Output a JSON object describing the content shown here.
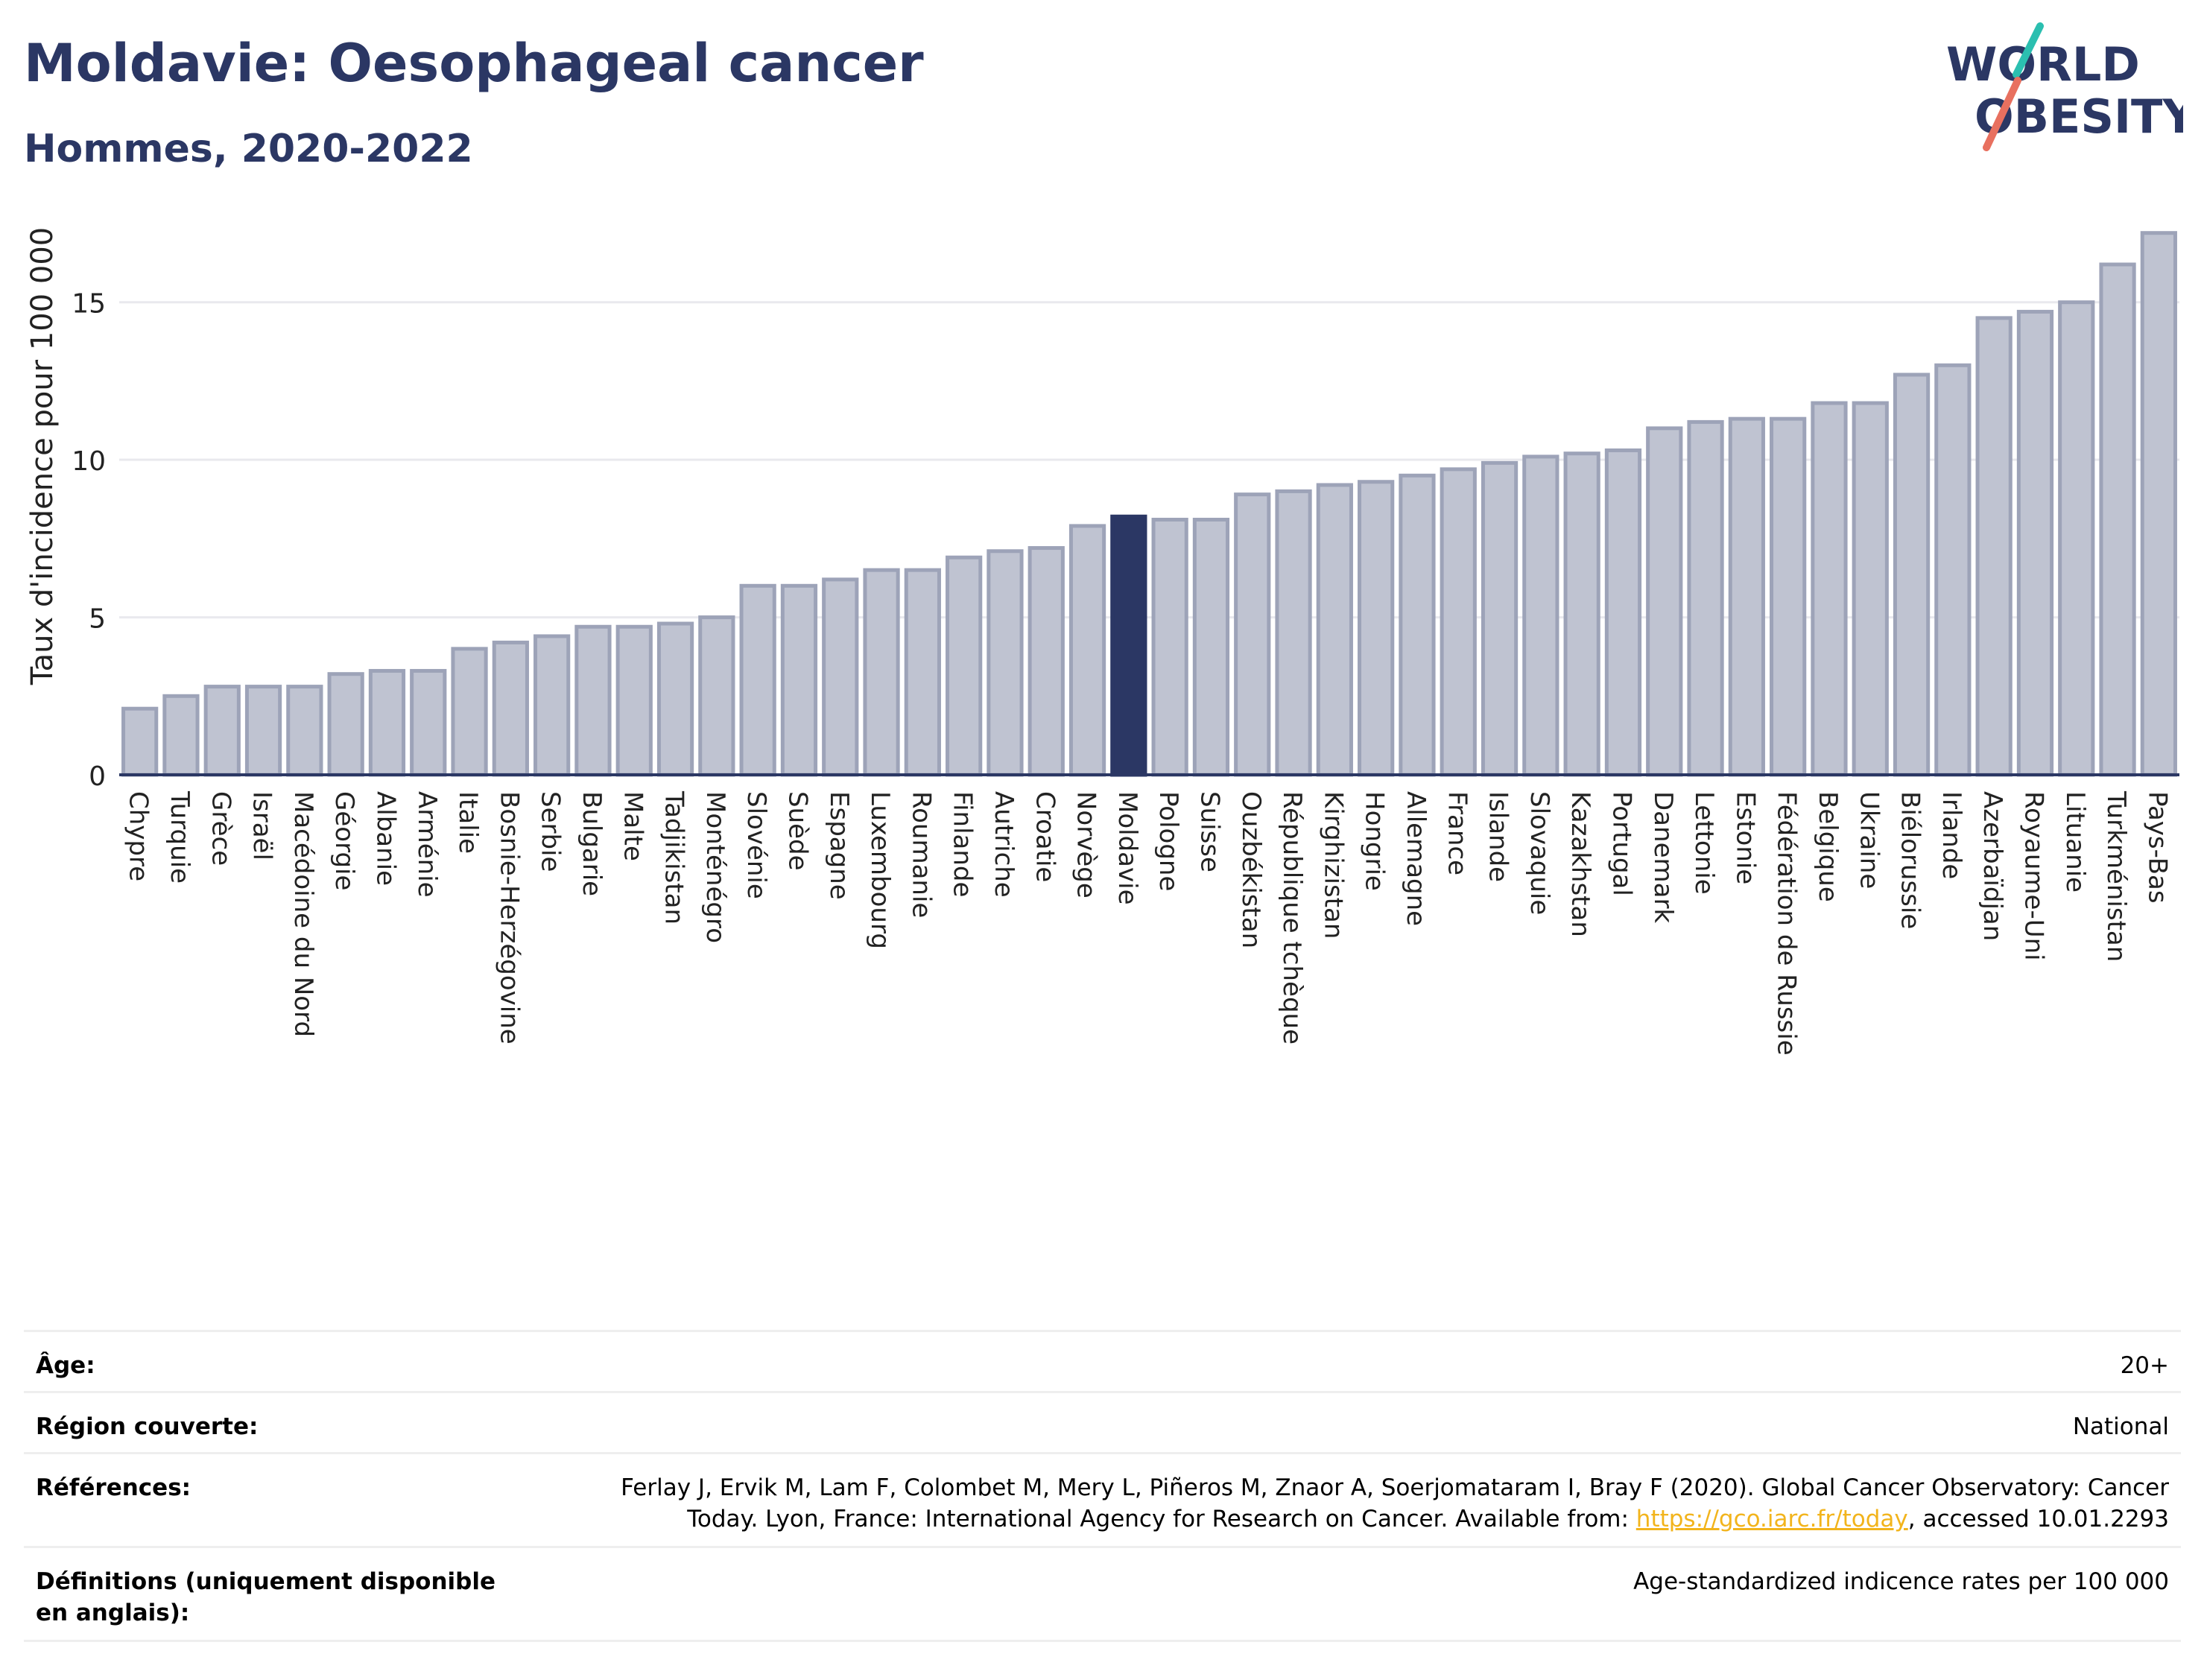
{
  "header": {
    "title": "Moldavie: Oesophageal cancer",
    "subtitle": "Hommes, 2020-2022"
  },
  "logo": {
    "line1": "WORLD",
    "line2": "OBESITY",
    "accent_colors": [
      "#2bbfb0",
      "#e8705f"
    ]
  },
  "colors": {
    "bar": "#bfc3d1",
    "bar_stroke": "#9da3b8",
    "highlight": "#2b3764",
    "axis": "#2b3764",
    "grid": "#e9e9ee"
  },
  "chart_data": {
    "type": "bar",
    "ylabel": "Taux d'incidence pour 100 000",
    "ylim": [
      0,
      17.5
    ],
    "yticks": [
      0,
      5,
      10,
      15
    ],
    "grid": true,
    "highlight": "Moldavie",
    "categories": [
      "Chypre",
      "Turquie",
      "Grèce",
      "Israël",
      "Macédoine du Nord",
      "Géorgie",
      "Albanie",
      "Arménie",
      "Italie",
      "Bosnie-Herzégovine",
      "Serbie",
      "Bulgarie",
      "Malte",
      "Tadjikistan",
      "Monténégro",
      "Slovénie",
      "Suède",
      "Espagne",
      "Luxembourg",
      "Roumanie",
      "Finlande",
      "Autriche",
      "Croatie",
      "Norvège",
      "Moldavie",
      "Pologne",
      "Suisse",
      "Ouzbékistan",
      "République tchèque",
      "Kirghizistan",
      "Hongrie",
      "Allemagne",
      "France",
      "Islande",
      "Slovaquie",
      "Kazakhstan",
      "Portugal",
      "Danemark",
      "Lettonie",
      "Estonie",
      "Fédération de Russie",
      "Belgique",
      "Ukraine",
      "Biélorussie",
      "Irlande",
      "Azerbaïdjan",
      "Royaume-Uni",
      "Lituanie",
      "Turkménistan",
      "Pays-Bas"
    ],
    "values": [
      2.1,
      2.5,
      2.8,
      2.8,
      2.8,
      3.2,
      3.3,
      3.3,
      4.0,
      4.2,
      4.4,
      4.7,
      4.7,
      4.8,
      5.0,
      6.0,
      6.0,
      6.2,
      6.5,
      6.5,
      6.9,
      7.1,
      7.2,
      7.9,
      8.2,
      8.1,
      8.1,
      8.9,
      9.0,
      9.2,
      9.3,
      9.5,
      9.7,
      9.9,
      10.1,
      10.2,
      10.3,
      11.0,
      11.2,
      11.3,
      11.3,
      11.8,
      11.8,
      12.7,
      13.0,
      14.5,
      14.7,
      15.0,
      16.2,
      17.2
    ]
  },
  "meta": {
    "age_label": "Âge:",
    "age_value": "20+",
    "region_label": "Région couverte:",
    "region_value": "National",
    "ref_label": "Références:",
    "ref_text_1": "Ferlay J, Ervik M, Lam F, Colombet M, Mery L, Piñeros M, Znaor A, Soerjomataram I, Bray F (2020). Global Cancer Observatory: Cancer",
    "ref_text_2": "Today. Lyon, France: International Agency for Research on Cancer. Available from: ",
    "ref_link": "https://gco.iarc.fr/today",
    "ref_text_3": ", accessed 10.01.2293",
    "def_label": "Définitions (uniquement disponible en anglais):",
    "def_value": "Age-standardized indicence rates per 100 000"
  }
}
